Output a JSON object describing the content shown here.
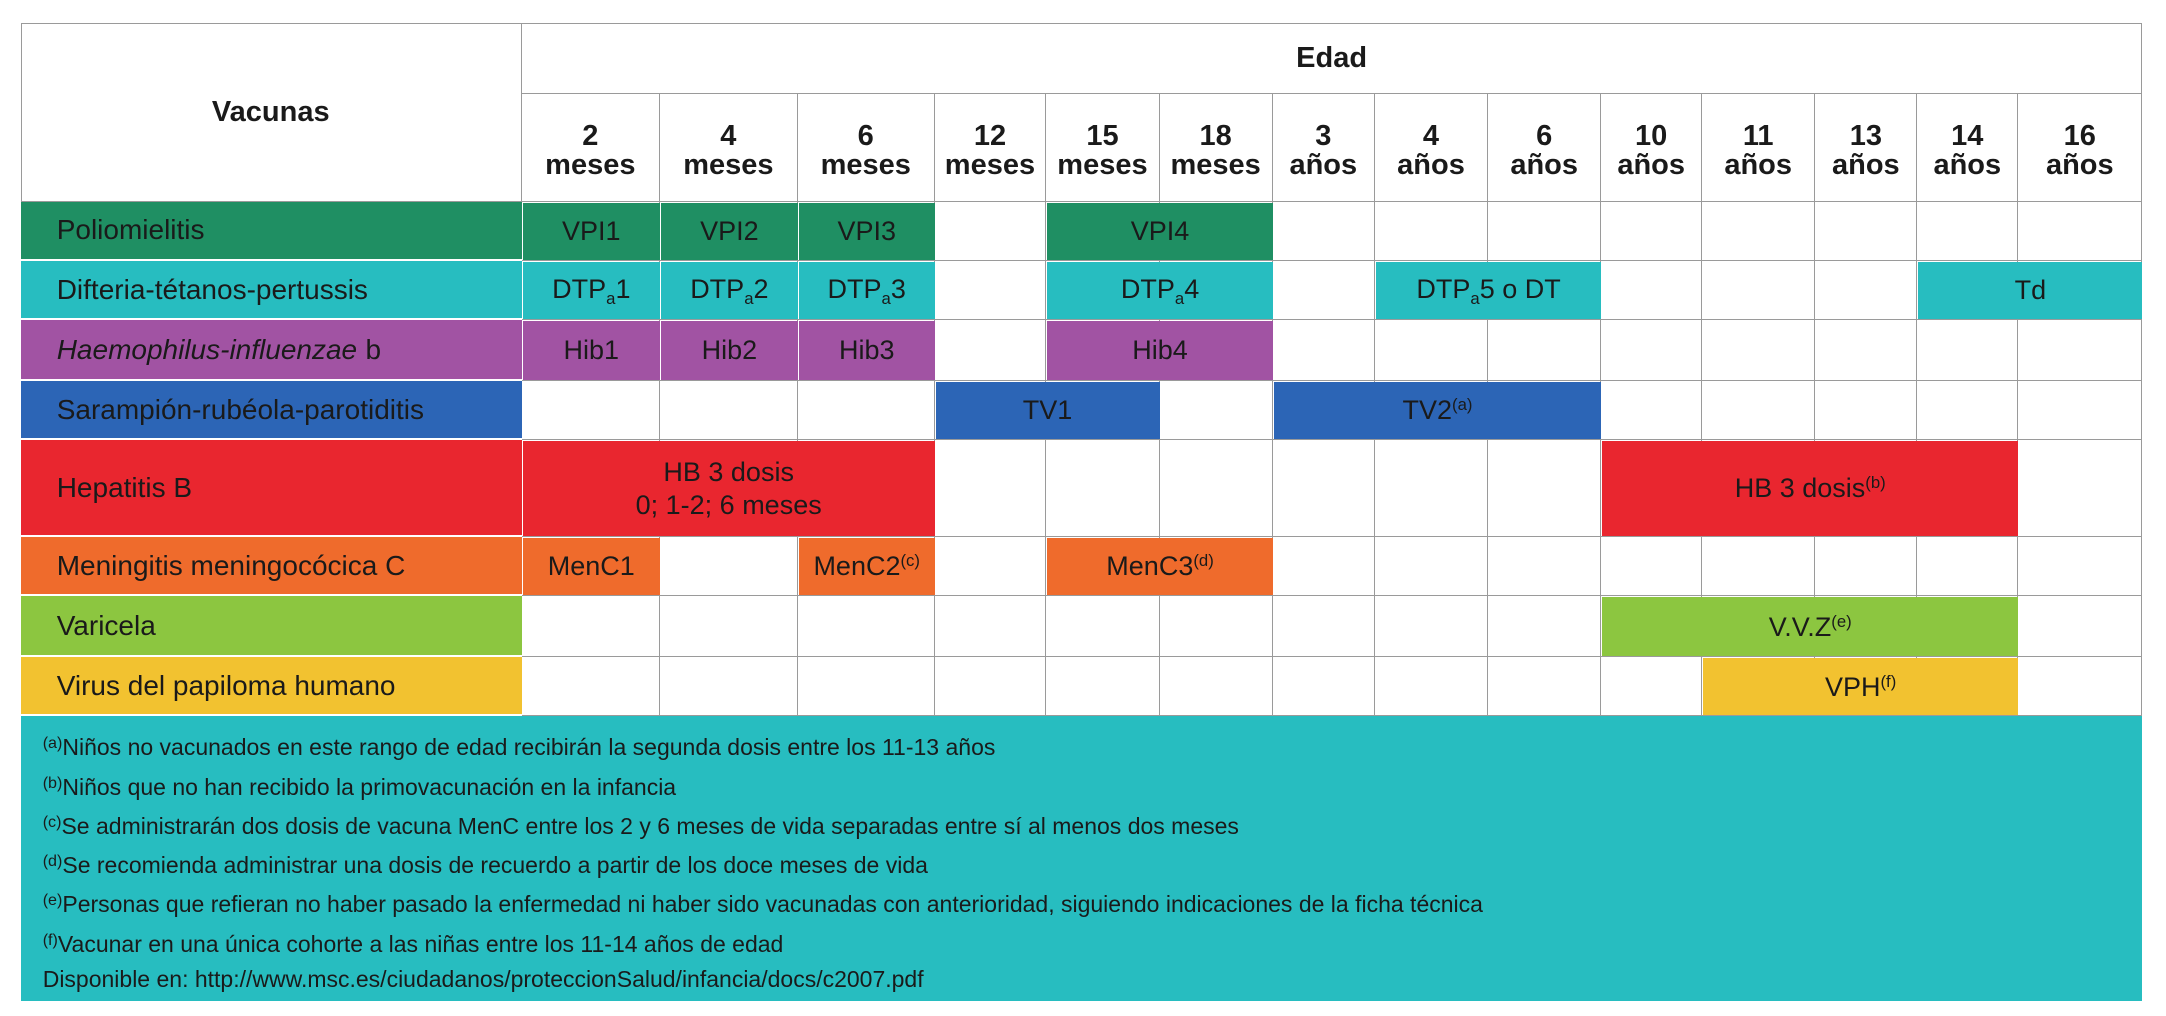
{
  "header": {
    "vaccines": "Vacunas",
    "age": "Edad",
    "ages": [
      {
        "n": "2",
        "unit": "meses"
      },
      {
        "n": "4",
        "unit": "meses"
      },
      {
        "n": "6",
        "unit": "meses"
      },
      {
        "n": "12",
        "unit": "meses"
      },
      {
        "n": "15",
        "unit": "meses"
      },
      {
        "n": "18",
        "unit": "meses"
      },
      {
        "n": "3",
        "unit": "años"
      },
      {
        "n": "4",
        "unit": "años"
      },
      {
        "n": "6",
        "unit": "años"
      },
      {
        "n": "10",
        "unit": "años"
      },
      {
        "n": "11",
        "unit": "años"
      },
      {
        "n": "13",
        "unit": "años"
      },
      {
        "n": "14",
        "unit": "años"
      },
      {
        "n": "16",
        "unit": "años"
      }
    ]
  },
  "rows": [
    {
      "name": "Poliomielitis",
      "color": "#1f8f63",
      "cells": [
        {
          "label": "VPI1",
          "col": 0,
          "span": 1
        },
        {
          "label": "VPI2",
          "col": 1,
          "span": 1
        },
        {
          "label": "VPI3",
          "col": 2,
          "span": 1
        },
        {
          "label": "VPI4",
          "col": 4,
          "span": 2
        }
      ]
    },
    {
      "name": "Difteria-tétanos-pertussis",
      "color": "#27bdc0",
      "cells": [
        {
          "label": "DTP",
          "sub": "a",
          "suffix": "1",
          "col": 0,
          "span": 1
        },
        {
          "label": "DTP",
          "sub": "a",
          "suffix": "2",
          "col": 1,
          "span": 1
        },
        {
          "label": "DTP",
          "sub": "a",
          "suffix": "3",
          "col": 2,
          "span": 1
        },
        {
          "label": "DTP",
          "sub": "a",
          "suffix": "4",
          "col": 4,
          "span": 2
        },
        {
          "label": "DTP",
          "sub": "a",
          "suffix": "5 o DT",
          "col": 7,
          "span": 2
        },
        {
          "label": "Td",
          "col": 12,
          "span": 2
        }
      ]
    },
    {
      "name_italic": "Haemophilus-influenzae",
      "name": "b",
      "color": "#a153a3",
      "cells": [
        {
          "label": "Hib1",
          "col": 0,
          "span": 1
        },
        {
          "label": "Hib2",
          "col": 1,
          "span": 1
        },
        {
          "label": "Hib3",
          "col": 2,
          "span": 1
        },
        {
          "label": "Hib4",
          "col": 4,
          "span": 2
        }
      ]
    },
    {
      "name": "Sarampión-rubéola-parotiditis",
      "color": "#2c65b6",
      "cells": [
        {
          "label": "TV1",
          "col": 3,
          "span": 2
        },
        {
          "label": "TV2",
          "sup": "(a)",
          "col": 6,
          "span": 3
        }
      ]
    },
    {
      "name": "Hepatitis B",
      "color": "#e9262f",
      "cells": [
        {
          "lines": [
            "HB 3 dosis",
            "0; 1-2; 6 meses"
          ],
          "col": 0,
          "span": 3
        },
        {
          "label": "HB 3 dosis",
          "sup": "(b)",
          "col": 9,
          "span": 4
        }
      ]
    },
    {
      "name": "Meningitis meningocócica C",
      "color": "#ef6b2c",
      "cells": [
        {
          "label": "MenC1",
          "col": 0,
          "span": 1
        },
        {
          "label": "MenC2",
          "sup": "(c)",
          "col": 2,
          "span": 1
        },
        {
          "label": "MenC3",
          "sup": "(d)",
          "col": 4,
          "span": 2
        }
      ]
    },
    {
      "name": "Varicela",
      "color": "#8cc640",
      "cells": [
        {
          "label": "V.V.Z",
          "sup": "(e)",
          "col": 9,
          "span": 4
        }
      ]
    },
    {
      "name": "Virus del papiloma humano",
      "color": "#f2c230",
      "cells": [
        {
          "label": "VPH",
          "sup": "(f)",
          "col": 10,
          "span": 3
        }
      ]
    }
  ],
  "footer_color": "#27bdc0",
  "footnotes": [
    {
      "mark": "(a)",
      "text": "Niños no vacunados en este rango de edad recibirán la segunda dosis entre los 11-13 años"
    },
    {
      "mark": "(b)",
      "text": "Niños que no han recibido la primovacunación en la infancia"
    },
    {
      "mark": "(c)",
      "text": "Se administrarán dos dosis de vacuna MenC entre los 2 y 6 meses de vida separadas entre sí al menos dos meses"
    },
    {
      "mark": "(d)",
      "text": "Se recomienda administrar una dosis de recuerdo a partir de los doce meses de vida"
    },
    {
      "mark": "(e)",
      "text": "Personas que refieran no haber pasado la enfermedad ni haber sido vacunadas con anterioridad, siguiendo indicaciones de la ficha técnica"
    },
    {
      "mark": "(f)",
      "text": "Vacunar en una única cohorte a las niñas entre los 11-14 años de edad"
    },
    {
      "text": "Disponible en: http://www.msc.es/ciudadanos/proteccionSalud/infancia/docs/c2007.pdf"
    }
  ]
}
